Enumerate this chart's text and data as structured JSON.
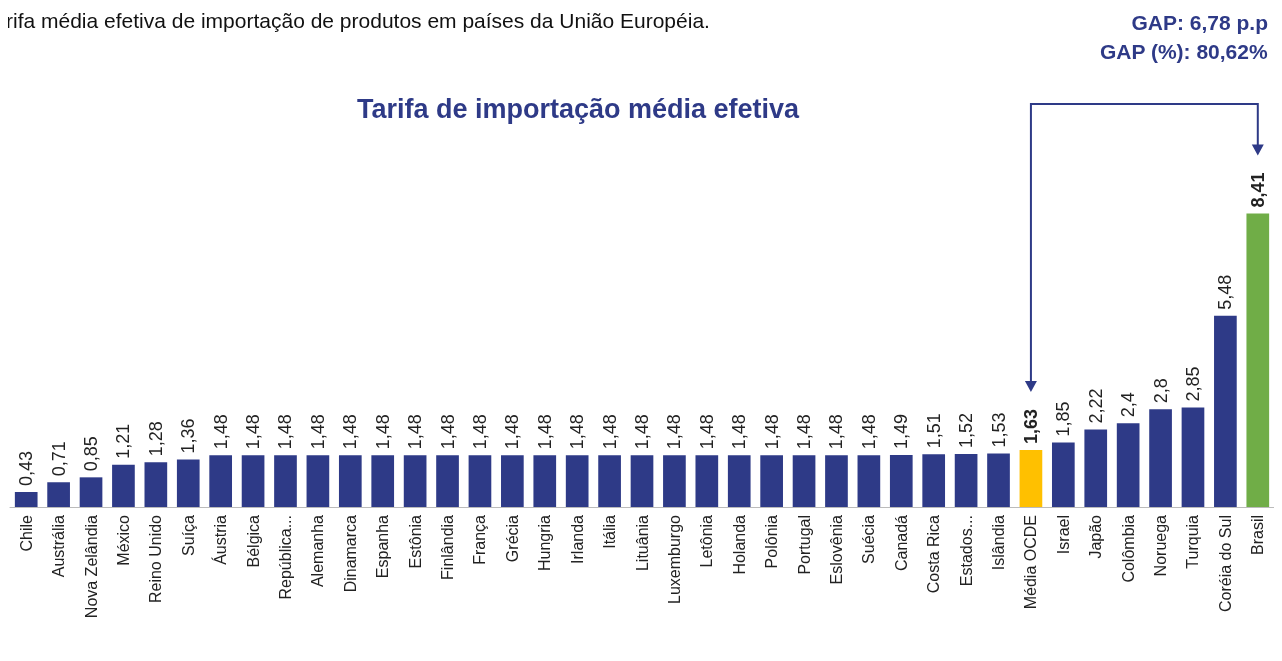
{
  "chart_data": {
    "type": "bar",
    "title": "Tarifa de importação média efetiva",
    "categories": [
      "Chile",
      "Austrália",
      "Nova Zelândia",
      "México",
      "Reino Unido",
      "Suíça",
      "Áustria",
      "Bélgica",
      "República...",
      "Alemanha",
      "Dinamarca",
      "Espanha",
      "Estônia",
      "Finlândia",
      "França",
      "Grécia",
      "Hungria",
      "Irlanda",
      "Itália",
      "Lituânia",
      "Luxemburgo",
      "Letônia",
      "Holanda",
      "Polônia",
      "Portugal",
      "Eslovênia",
      "Suécia",
      "Canadá",
      "Costa Rica",
      "Estados...",
      "Islândia",
      "Média OCDE",
      "Israel",
      "Japão",
      "Colômbia",
      "Noruega",
      "Turquia",
      "Coréia do Sul",
      "Brasil"
    ],
    "values": [
      0.43,
      0.71,
      0.85,
      1.21,
      1.28,
      1.36,
      1.48,
      1.48,
      1.48,
      1.48,
      1.48,
      1.48,
      1.48,
      1.48,
      1.48,
      1.48,
      1.48,
      1.48,
      1.48,
      1.48,
      1.48,
      1.48,
      1.48,
      1.48,
      1.48,
      1.48,
      1.48,
      1.49,
      1.51,
      1.52,
      1.53,
      1.63,
      1.85,
      2.22,
      2.4,
      2.8,
      2.85,
      5.48,
      8.41
    ],
    "value_labels": [
      "0,43",
      "0,71",
      "0,85",
      "1,21",
      "1,28",
      "1,36",
      "1,48",
      "1,48",
      "1,48",
      "1,48",
      "1,48",
      "1,48",
      "1,48",
      "1,48",
      "1,48",
      "1,48",
      "1,48",
      "1,48",
      "1,48",
      "1,48",
      "1,48",
      "1,48",
      "1,48",
      "1,48",
      "1,48",
      "1,48",
      "1,48",
      "1,49",
      "1,51",
      "1,52",
      "1,53",
      "1,63",
      "1,85",
      "2,22",
      "2,4",
      "2,8",
      "2,85",
      "5,48",
      "8,41"
    ],
    "colors": [
      "#2e3a87",
      "#2e3a87",
      "#2e3a87",
      "#2e3a87",
      "#2e3a87",
      "#2e3a87",
      "#2e3a87",
      "#2e3a87",
      "#2e3a87",
      "#2e3a87",
      "#2e3a87",
      "#2e3a87",
      "#2e3a87",
      "#2e3a87",
      "#2e3a87",
      "#2e3a87",
      "#2e3a87",
      "#2e3a87",
      "#2e3a87",
      "#2e3a87",
      "#2e3a87",
      "#2e3a87",
      "#2e3a87",
      "#2e3a87",
      "#2e3a87",
      "#2e3a87",
      "#2e3a87",
      "#2e3a87",
      "#2e3a87",
      "#2e3a87",
      "#2e3a87",
      "#ffc000",
      "#2e3a87",
      "#2e3a87",
      "#2e3a87",
      "#2e3a87",
      "#2e3a87",
      "#2e3a87",
      "#70ad47"
    ],
    "annotations": [
      "rifa média efetiva de importação de produtos em países da União Européia.",
      "GAP: 6,78 p.p",
      "GAP (%): 80,62%"
    ],
    "tick_labels": "x",
    "grid": false
  }
}
